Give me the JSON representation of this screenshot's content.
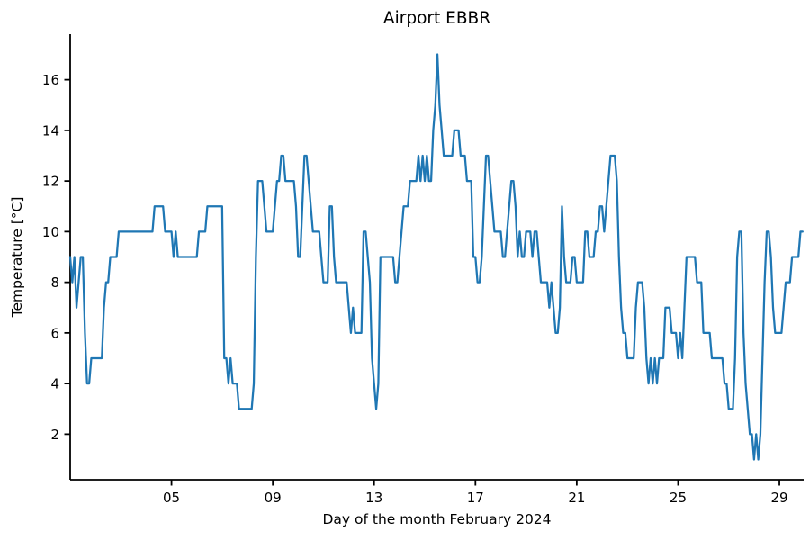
{
  "chart_data": {
    "type": "line",
    "title": "Airport EBBR",
    "xlabel": "Day of the month February 2024",
    "ylabel": "Temperature [°C]",
    "grid": false,
    "legend_position": "none",
    "line_color": "#1f77b4",
    "line_width": 2.25,
    "axis_color": "#000000",
    "xlim": [
      1,
      29.9583
    ],
    "ylim": [
      0.2,
      17.8
    ],
    "xticks": [
      5,
      9,
      13,
      17,
      21,
      25,
      29
    ],
    "xtick_labels": [
      "05",
      "09",
      "13",
      "17",
      "21",
      "25",
      "29"
    ],
    "yticks": [
      2,
      4,
      6,
      8,
      10,
      12,
      14,
      16
    ],
    "ytick_labels": [
      "2",
      "4",
      "6",
      "8",
      "10",
      "12",
      "14",
      "16"
    ],
    "x_start_day": 1,
    "x_step_days": 0.08333333,
    "series": [
      {
        "name": "Temperature",
        "values": [
          9,
          8,
          9,
          7,
          8,
          9,
          9,
          6,
          4,
          4,
          5,
          5,
          5,
          5,
          5,
          5,
          7,
          8,
          8,
          9,
          9,
          9,
          9,
          10,
          10,
          10,
          10,
          10,
          10,
          10,
          10,
          10,
          10,
          10,
          10,
          10,
          10,
          10,
          10,
          10,
          11,
          11,
          11,
          11,
          11,
          10,
          10,
          10,
          10,
          9,
          10,
          9,
          9,
          9,
          9,
          9,
          9,
          9,
          9,
          9,
          9,
          10,
          10,
          10,
          10,
          11,
          11,
          11,
          11,
          11,
          11,
          11,
          11,
          5,
          5,
          4,
          5,
          4,
          4,
          4,
          3,
          3,
          3,
          3,
          3,
          3,
          3,
          4,
          9,
          12,
          12,
          12,
          11,
          10,
          10,
          10,
          10,
          11,
          12,
          12,
          13,
          13,
          12,
          12,
          12,
          12,
          12,
          11,
          9,
          9,
          11,
          13,
          13,
          12,
          11,
          10,
          10,
          10,
          10,
          9,
          8,
          8,
          8,
          11,
          11,
          9,
          8,
          8,
          8,
          8,
          8,
          8,
          7,
          6,
          7,
          6,
          6,
          6,
          6,
          10,
          10,
          9,
          8,
          5,
          4,
          3,
          4,
          9,
          9,
          9,
          9,
          9,
          9,
          9,
          8,
          8,
          9,
          10,
          11,
          11,
          11,
          12,
          12,
          12,
          12,
          13,
          12,
          13,
          12,
          13,
          12,
          12,
          14,
          15,
          17,
          15,
          14,
          13,
          13,
          13,
          13,
          13,
          14,
          14,
          14,
          13,
          13,
          13,
          12,
          12,
          12,
          9,
          9,
          8,
          8,
          9,
          11,
          13,
          13,
          12,
          11,
          10,
          10,
          10,
          10,
          9,
          9,
          10,
          11,
          12,
          12,
          11,
          9,
          10,
          9,
          9,
          10,
          10,
          10,
          9,
          10,
          10,
          9,
          8,
          8,
          8,
          8,
          7,
          8,
          7,
          6,
          6,
          7,
          11,
          9,
          8,
          8,
          8,
          9,
          9,
          8,
          8,
          8,
          8,
          10,
          10,
          9,
          9,
          9,
          10,
          10,
          11,
          11,
          10,
          11,
          12,
          13,
          13,
          13,
          12,
          9,
          7,
          6,
          6,
          5,
          5,
          5,
          5,
          7,
          8,
          8,
          8,
          7,
          5,
          4,
          5,
          4,
          5,
          4,
          5,
          5,
          5,
          7,
          7,
          7,
          6,
          6,
          6,
          5,
          6,
          5,
          7,
          9,
          9,
          9,
          9,
          9,
          8,
          8,
          8,
          6,
          6,
          6,
          6,
          5,
          5,
          5,
          5,
          5,
          5,
          4,
          4,
          3,
          3,
          3,
          5,
          9,
          10,
          10,
          6,
          4,
          3,
          2,
          2,
          1,
          2,
          1,
          2,
          5,
          8,
          10,
          10,
          9,
          7,
          6,
          6,
          6,
          6,
          7,
          8,
          8,
          8,
          9,
          9,
          9,
          9,
          10,
          10
        ]
      }
    ]
  }
}
